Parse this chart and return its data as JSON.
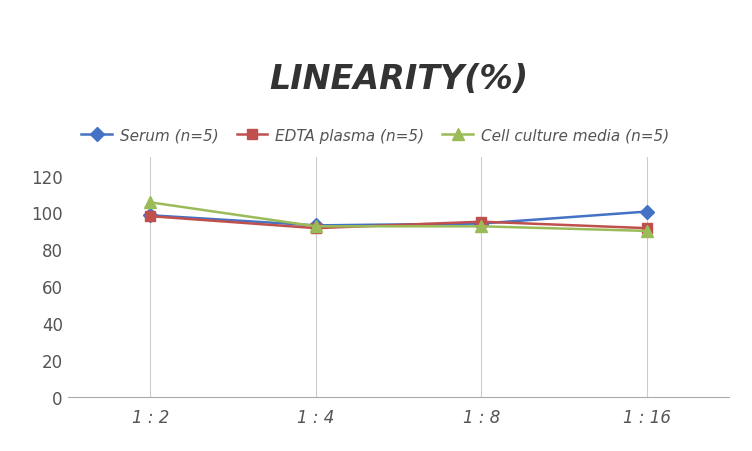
{
  "title": "LINEARITY(%)",
  "x_labels": [
    "1 : 2",
    "1 : 4",
    "1 : 8",
    "1 : 16"
  ],
  "x_positions": [
    0,
    1,
    2,
    3
  ],
  "series": [
    {
      "label": "Serum (n=5)",
      "values": [
        98.5,
        93.0,
        94.0,
        100.5
      ],
      "color": "#4472C4",
      "marker": "D",
      "marker_size": 7,
      "zorder": 3
    },
    {
      "label": "EDTA plasma (n=5)",
      "values": [
        98.0,
        91.5,
        95.0,
        91.5
      ],
      "color": "#C0504D",
      "marker": "s",
      "marker_size": 7,
      "zorder": 3
    },
    {
      "label": "Cell culture media (n=5)",
      "values": [
        105.5,
        92.5,
        92.5,
        90.0
      ],
      "color": "#9BBB59",
      "marker": "^",
      "marker_size": 8,
      "zorder": 3
    }
  ],
  "ylim": [
    0,
    130
  ],
  "yticks": [
    0,
    20,
    40,
    60,
    80,
    100,
    120
  ],
  "background_color": "#FFFFFF",
  "grid_color": "#CCCCCC",
  "title_fontsize": 24,
  "title_style": "italic",
  "title_weight": "bold",
  "legend_fontsize": 11,
  "tick_fontsize": 12,
  "line_width": 1.8
}
